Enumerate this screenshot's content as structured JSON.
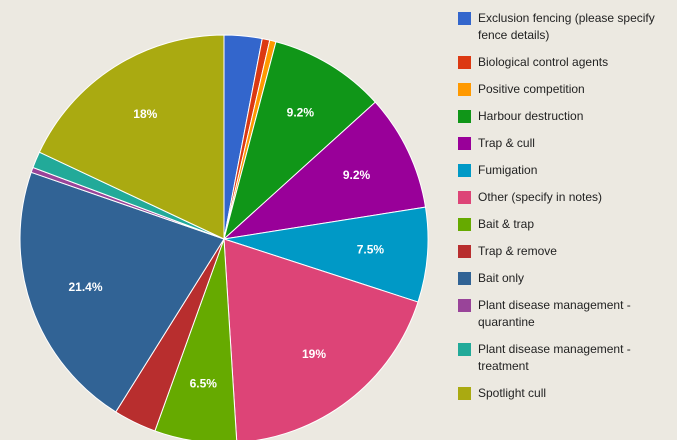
{
  "chart_data": {
    "type": "pie",
    "categories": [
      "Exclusion fencing (please specify fence details)",
      "Biological control agents",
      "Positive competition",
      "Harbour destruction",
      "Trap & cull",
      "Fumigation",
      "Other (specify in notes)",
      "Bait & trap",
      "Trap & remove",
      "Bait only",
      "Plant disease management - quarantine",
      "Plant disease management - treatment",
      "Spotlight cull"
    ],
    "values": [
      3.0,
      0.6,
      0.5,
      9.2,
      9.2,
      7.5,
      19,
      6.5,
      3.4,
      21.4,
      0.4,
      1.3,
      18
    ],
    "value_labels": [
      null,
      null,
      null,
      "9.2%",
      "9.2%",
      "7.5%",
      "19%",
      "6.5%",
      null,
      "21.4%",
      null,
      null,
      "18%"
    ],
    "colors": [
      "#3366cc",
      "#dc3912",
      "#ff9900",
      "#109618",
      "#990099",
      "#0099c6",
      "#dd4477",
      "#66aa00",
      "#b82e2e",
      "#316395",
      "#994499",
      "#22aa99",
      "#aaaa11"
    ],
    "legend": "right"
  }
}
